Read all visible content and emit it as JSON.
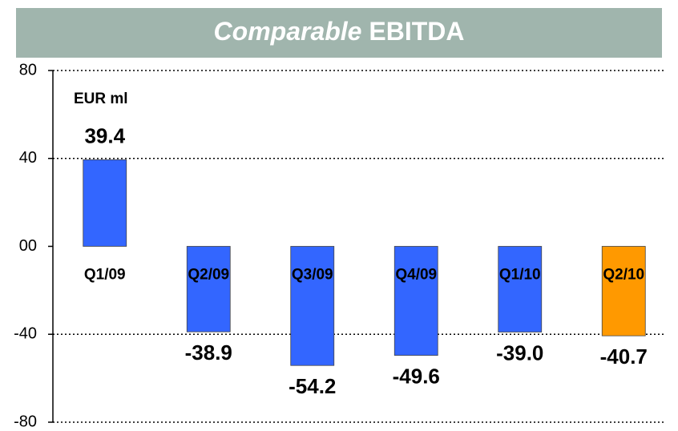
{
  "chart_data": {
    "type": "bar",
    "title_prefix": "Comparable",
    "title": "EBITDA",
    "unit_label": "EUR ml",
    "categories": [
      "Q1/09",
      "Q2/09",
      "Q3/09",
      "Q4/09",
      "Q1/10",
      "Q2/10"
    ],
    "values": [
      39.4,
      -38.9,
      -54.2,
      -49.6,
      -39.0,
      -40.7
    ],
    "value_labels": [
      "39.4",
      "-38.9",
      "-54.2",
      "-49.6",
      "-39.0",
      "-40.7"
    ],
    "colors": [
      "#3366ff",
      "#3366ff",
      "#3366ff",
      "#3366ff",
      "#3366ff",
      "#ff9900"
    ],
    "ylim": [
      -80,
      80
    ],
    "yticks": [
      -80,
      -40,
      {
        "value": 0,
        "label": "00"
      },
      40,
      80
    ],
    "grid": true
  }
}
